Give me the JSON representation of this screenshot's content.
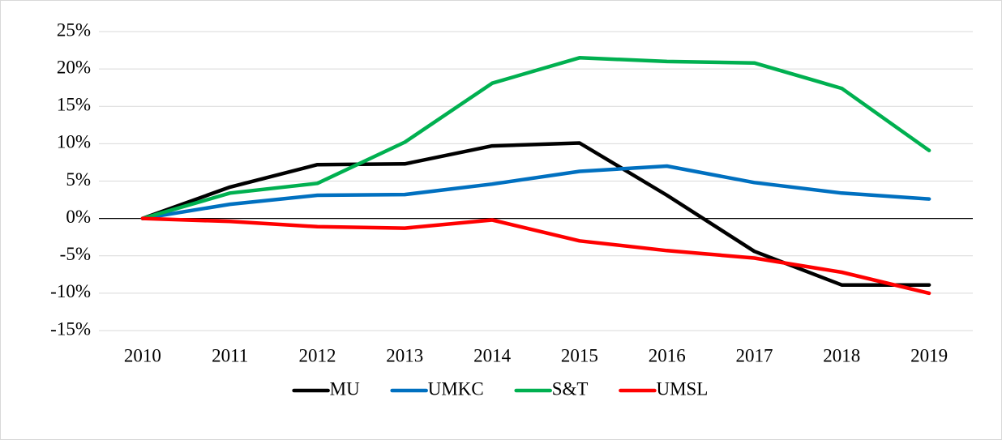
{
  "chart_data": {
    "type": "line",
    "categories": [
      "2010",
      "2011",
      "2012",
      "2013",
      "2014",
      "2015",
      "2016",
      "2017",
      "2018",
      "2019"
    ],
    "series": [
      {
        "name": "MU",
        "color": "#000000",
        "values": [
          0,
          4.2,
          7.2,
          7.3,
          9.7,
          10.1,
          3.1,
          -4.4,
          -8.9,
          -8.9
        ]
      },
      {
        "name": "UMKC",
        "color": "#0070c0",
        "values": [
          0,
          1.9,
          3.1,
          3.2,
          4.6,
          6.3,
          7.0,
          4.8,
          3.4,
          2.6
        ]
      },
      {
        "name": "S&T",
        "color": "#00b050",
        "values": [
          0,
          3.4,
          4.7,
          10.2,
          18.1,
          21.5,
          21.0,
          20.8,
          17.4,
          9.1
        ]
      },
      {
        "name": "UMSL",
        "color": "#ff0000",
        "values": [
          0,
          -0.4,
          -1.1,
          -1.3,
          -0.2,
          -3.0,
          -4.3,
          -5.3,
          -7.2,
          -10.0
        ]
      }
    ],
    "ylim": [
      -15,
      25
    ],
    "yticks": [
      {
        "value": -15,
        "label": "-15%"
      },
      {
        "value": -10,
        "label": "-10%"
      },
      {
        "value": -5,
        "label": "-5%"
      },
      {
        "value": 0,
        "label": "0%"
      },
      {
        "value": 5,
        "label": "5%"
      },
      {
        "value": 10,
        "label": "10%"
      },
      {
        "value": 15,
        "label": "15%"
      },
      {
        "value": 20,
        "label": "20%"
      },
      {
        "value": 25,
        "label": "25%"
      }
    ],
    "grid": true,
    "legend": "bottom"
  }
}
